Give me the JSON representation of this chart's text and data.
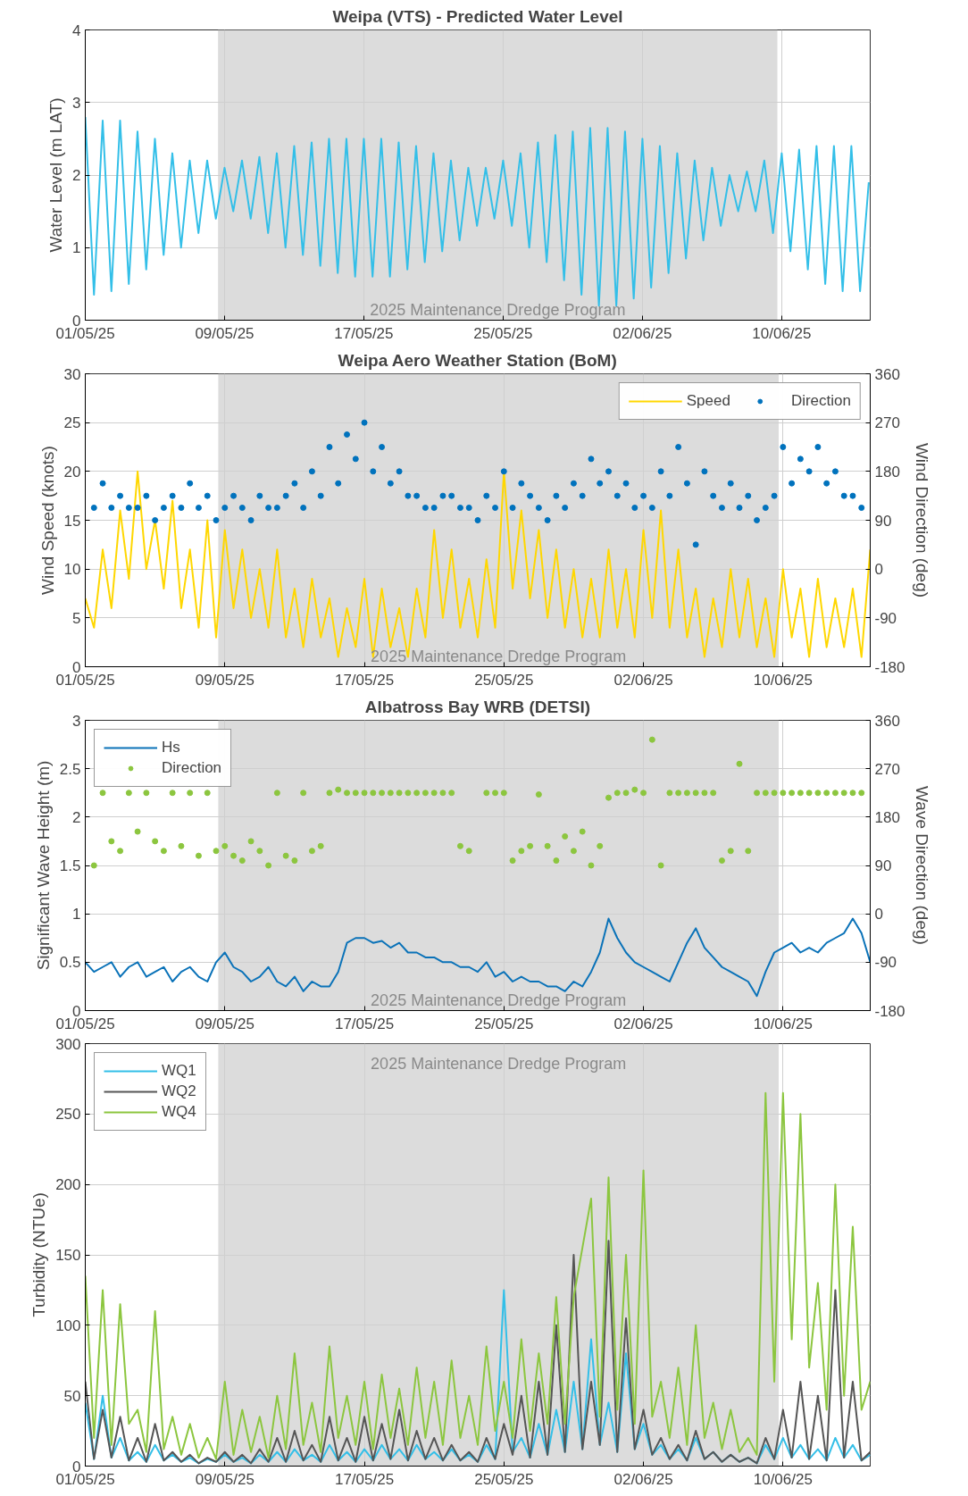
{
  "chart_data": [
    {
      "type": "line",
      "title": "Weipa (VTS) - Predicted Water Level",
      "ylabel": "Water Level (m LAT)",
      "grid": true,
      "xlim": [
        "2025-05-01T00:00",
        "2025-06-15T02:00"
      ],
      "ylim": [
        0,
        4
      ],
      "yticks": [
        0,
        1,
        2,
        3,
        4
      ],
      "xticks": [
        {
          "value": "2025-05-01",
          "label": "01/05/25"
        },
        {
          "value": "2025-05-09",
          "label": "09/05/25"
        },
        {
          "value": "2025-05-17",
          "label": "17/05/25"
        },
        {
          "value": "2025-05-25",
          "label": "25/05/25"
        },
        {
          "value": "2025-06-02",
          "label": "02/06/25"
        },
        {
          "value": "2025-06-10",
          "label": "10/06/25"
        }
      ],
      "bands": [
        {
          "axis": "x",
          "from": "2025-05-08T15:00",
          "to": "2025-06-09T18:00",
          "label": "2025 Maintenance Dredge Program",
          "color": "#dcdcdc"
        }
      ],
      "x": [
        "2025-05-01T00:00",
        "2025-05-01T12:00",
        "2025-05-02T00:00",
        "2025-05-02T12:00",
        "2025-05-03T00:00",
        "2025-05-03T12:00",
        "2025-05-04T00:00",
        "2025-05-04T12:00",
        "2025-05-05T00:00",
        "2025-05-05T12:00",
        "2025-05-06T00:00",
        "2025-05-06T12:00",
        "2025-05-07T00:00",
        "2025-05-07T12:00",
        "2025-05-08T00:00",
        "2025-05-08T12:00",
        "2025-05-09T00:00",
        "2025-05-09T12:00",
        "2025-05-10T00:00",
        "2025-05-10T12:00",
        "2025-05-11T00:00",
        "2025-05-11T12:00",
        "2025-05-12T00:00",
        "2025-05-12T12:00",
        "2025-05-13T00:00",
        "2025-05-13T12:00",
        "2025-05-14T00:00",
        "2025-05-14T12:00",
        "2025-05-15T00:00",
        "2025-05-15T12:00",
        "2025-05-16T00:00",
        "2025-05-16T12:00",
        "2025-05-17T00:00",
        "2025-05-17T12:00",
        "2025-05-18T00:00",
        "2025-05-18T12:00",
        "2025-05-19T00:00",
        "2025-05-19T12:00",
        "2025-05-20T00:00",
        "2025-05-20T12:00",
        "2025-05-21T00:00",
        "2025-05-21T12:00",
        "2025-05-22T00:00",
        "2025-05-22T12:00",
        "2025-05-23T00:00",
        "2025-05-23T12:00",
        "2025-05-24T00:00",
        "2025-05-24T12:00",
        "2025-05-25T00:00",
        "2025-05-25T12:00",
        "2025-05-26T00:00",
        "2025-05-26T12:00",
        "2025-05-27T00:00",
        "2025-05-27T12:00",
        "2025-05-28T00:00",
        "2025-05-28T12:00",
        "2025-05-29T00:00",
        "2025-05-29T12:00",
        "2025-05-30T00:00",
        "2025-05-30T12:00",
        "2025-05-31T00:00",
        "2025-05-31T12:00",
        "2025-06-01T00:00",
        "2025-06-01T12:00",
        "2025-06-02T00:00",
        "2025-06-02T12:00",
        "2025-06-03T00:00",
        "2025-06-03T12:00",
        "2025-06-04T00:00",
        "2025-06-04T12:00",
        "2025-06-05T00:00",
        "2025-06-05T12:00",
        "2025-06-06T00:00",
        "2025-06-06T12:00",
        "2025-06-07T00:00",
        "2025-06-07T12:00",
        "2025-06-08T00:00",
        "2025-06-08T12:00",
        "2025-06-09T00:00",
        "2025-06-09T12:00",
        "2025-06-10T00:00",
        "2025-06-10T12:00",
        "2025-06-11T00:00",
        "2025-06-11T12:00",
        "2025-06-12T00:00",
        "2025-06-12T12:00",
        "2025-06-13T00:00",
        "2025-06-13T12:00",
        "2025-06-14T00:00",
        "2025-06-14T12:00",
        "2025-06-15T00:00"
      ],
      "series": [
        {
          "color": "#33bfe8",
          "values": [
            2.8,
            0.35,
            2.75,
            0.4,
            2.75,
            0.5,
            2.6,
            0.7,
            2.5,
            0.9,
            2.3,
            1.0,
            2.2,
            1.2,
            2.2,
            1.4,
            2.1,
            1.5,
            2.2,
            1.4,
            2.25,
            1.2,
            2.3,
            1.0,
            2.4,
            0.9,
            2.45,
            0.75,
            2.5,
            0.65,
            2.5,
            0.6,
            2.5,
            0.6,
            2.5,
            0.6,
            2.45,
            0.7,
            2.4,
            0.8,
            2.3,
            0.95,
            2.2,
            1.1,
            2.1,
            1.3,
            2.1,
            1.4,
            2.2,
            1.3,
            2.3,
            1.0,
            2.45,
            0.8,
            2.55,
            0.55,
            2.6,
            0.35,
            2.65,
            0.2,
            2.65,
            0.2,
            2.6,
            0.3,
            2.5,
            0.45,
            2.4,
            0.65,
            2.3,
            0.85,
            2.2,
            1.1,
            2.1,
            1.3,
            2.0,
            1.5,
            2.05,
            1.5,
            2.2,
            1.2,
            2.3,
            0.95,
            2.35,
            0.7,
            2.4,
            0.5,
            2.4,
            0.4,
            2.4,
            0.4,
            1.9
          ]
        }
      ]
    },
    {
      "type": "line",
      "title": "Weipa Aero Weather Station (BoM)",
      "ylabel": "Wind Speed (knots)",
      "y2label": "Wind Direction (deg)",
      "grid": true,
      "legend": "top right",
      "xlim": [
        "2025-05-01T00:00",
        "2025-06-15T00:00"
      ],
      "ylim": [
        0,
        30
      ],
      "yticks": [
        0,
        5,
        10,
        15,
        20,
        25,
        30
      ],
      "y2lim": [
        -180,
        360
      ],
      "y2ticks": [
        -180,
        -90,
        0,
        90,
        180,
        270,
        360
      ],
      "xticks": [
        {
          "value": "2025-05-01",
          "label": "01/05/25"
        },
        {
          "value": "2025-05-09",
          "label": "09/05/25"
        },
        {
          "value": "2025-05-17",
          "label": "17/05/25"
        },
        {
          "value": "2025-05-25",
          "label": "25/05/25"
        },
        {
          "value": "2025-06-02",
          "label": "02/06/25"
        },
        {
          "value": "2025-06-10",
          "label": "10/06/25"
        }
      ],
      "bands": [
        {
          "axis": "x",
          "from": "2025-05-08T15:00",
          "to": "2025-06-09T18:00",
          "label": "2025 Maintenance Dredge Program",
          "color": "#dcdcdc"
        }
      ],
      "x": [
        "2025-05-01T00:00",
        "2025-05-01T12:00",
        "2025-05-02T00:00",
        "2025-05-02T12:00",
        "2025-05-03T00:00",
        "2025-05-03T12:00",
        "2025-05-04T00:00",
        "2025-05-04T12:00",
        "2025-05-05T00:00",
        "2025-05-05T12:00",
        "2025-05-06T00:00",
        "2025-05-06T12:00",
        "2025-05-07T00:00",
        "2025-05-07T12:00",
        "2025-05-08T00:00",
        "2025-05-08T12:00",
        "2025-05-09T00:00",
        "2025-05-09T12:00",
        "2025-05-10T00:00",
        "2025-05-10T12:00",
        "2025-05-11T00:00",
        "2025-05-11T12:00",
        "2025-05-12T00:00",
        "2025-05-12T12:00",
        "2025-05-13T00:00",
        "2025-05-13T12:00",
        "2025-05-14T00:00",
        "2025-05-14T12:00",
        "2025-05-15T00:00",
        "2025-05-15T12:00",
        "2025-05-16T00:00",
        "2025-05-16T12:00",
        "2025-05-17T00:00",
        "2025-05-17T12:00",
        "2025-05-18T00:00",
        "2025-05-18T12:00",
        "2025-05-19T00:00",
        "2025-05-19T12:00",
        "2025-05-20T00:00",
        "2025-05-20T12:00",
        "2025-05-21T00:00",
        "2025-05-21T12:00",
        "2025-05-22T00:00",
        "2025-05-22T12:00",
        "2025-05-23T00:00",
        "2025-05-23T12:00",
        "2025-05-24T00:00",
        "2025-05-24T12:00",
        "2025-05-25T00:00",
        "2025-05-25T12:00",
        "2025-05-26T00:00",
        "2025-05-26T12:00",
        "2025-05-27T00:00",
        "2025-05-27T12:00",
        "2025-05-28T00:00",
        "2025-05-28T12:00",
        "2025-05-29T00:00",
        "2025-05-29T12:00",
        "2025-05-30T00:00",
        "2025-05-30T12:00",
        "2025-05-31T00:00",
        "2025-05-31T12:00",
        "2025-06-01T00:00",
        "2025-06-01T12:00",
        "2025-06-02T00:00",
        "2025-06-02T12:00",
        "2025-06-03T00:00",
        "2025-06-03T12:00",
        "2025-06-04T00:00",
        "2025-06-04T12:00",
        "2025-06-05T00:00",
        "2025-06-05T12:00",
        "2025-06-06T00:00",
        "2025-06-06T12:00",
        "2025-06-07T00:00",
        "2025-06-07T12:00",
        "2025-06-08T00:00",
        "2025-06-08T12:00",
        "2025-06-09T00:00",
        "2025-06-09T12:00",
        "2025-06-10T00:00",
        "2025-06-10T12:00",
        "2025-06-11T00:00",
        "2025-06-11T12:00",
        "2025-06-12T00:00",
        "2025-06-12T12:00",
        "2025-06-13T00:00",
        "2025-06-13T12:00",
        "2025-06-14T00:00",
        "2025-06-14T12:00",
        "2025-06-15T00:00"
      ],
      "series": [
        {
          "name": "Speed",
          "color": "#ffd700",
          "values": [
            7,
            4,
            12,
            6,
            16,
            9,
            20,
            10,
            15,
            8,
            17,
            6,
            12,
            4,
            15,
            3,
            14,
            6,
            12,
            5,
            10,
            4,
            12,
            3,
            8,
            2,
            9,
            3,
            7,
            1,
            6,
            2,
            9,
            1,
            8,
            2,
            6,
            1,
            8,
            3,
            14,
            5,
            12,
            4,
            9,
            3,
            11,
            4,
            20,
            8,
            16,
            7,
            14,
            5,
            12,
            4,
            10,
            3,
            9,
            3,
            12,
            4,
            10,
            3,
            14,
            5,
            16,
            4,
            12,
            3,
            8,
            1,
            7,
            2,
            10,
            3,
            9,
            2,
            7,
            1,
            10,
            3,
            8,
            1,
            9,
            2,
            7,
            2,
            8,
            1,
            12
          ]
        },
        {
          "name": "Direction",
          "type": "scatter",
          "marker": "circle",
          "axis": "y2",
          "color": "#0072bd",
          "values": [
            null,
            113,
            158,
            113,
            135,
            113,
            113,
            135,
            90,
            113,
            135,
            113,
            158,
            113,
            135,
            90,
            113,
            135,
            113,
            90,
            135,
            113,
            113,
            135,
            158,
            113,
            180,
            135,
            225,
            158,
            248,
            203,
            270,
            180,
            225,
            158,
            180,
            135,
            135,
            113,
            113,
            135,
            135,
            113,
            113,
            90,
            135,
            113,
            180,
            113,
            158,
            135,
            113,
            90,
            135,
            113,
            158,
            135,
            203,
            158,
            180,
            135,
            158,
            113,
            135,
            113,
            180,
            135,
            225,
            158,
            45,
            180,
            135,
            113,
            158,
            113,
            135,
            90,
            113,
            135,
            225,
            158,
            203,
            180,
            225,
            158,
            180,
            135,
            135,
            113,
            null
          ]
        }
      ]
    },
    {
      "type": "line",
      "title": "Albatross Bay WRB (DETSI)",
      "ylabel": "Significant Wave Height (m)",
      "y2label": "Wave Direction (deg)",
      "grid": true,
      "legend": "top left",
      "xlim": [
        "2025-05-01T00:00",
        "2025-06-15T00:00"
      ],
      "ylim": [
        0,
        3
      ],
      "yticks": [
        0,
        0.5,
        1,
        1.5,
        2,
        2.5,
        3
      ],
      "y2lim": [
        -180,
        360
      ],
      "y2ticks": [
        -180,
        -90,
        0,
        90,
        180,
        270,
        360
      ],
      "xticks": [
        {
          "value": "2025-05-01",
          "label": "01/05/25"
        },
        {
          "value": "2025-05-09",
          "label": "09/05/25"
        },
        {
          "value": "2025-05-17",
          "label": "17/05/25"
        },
        {
          "value": "2025-05-25",
          "label": "25/05/25"
        },
        {
          "value": "2025-06-02",
          "label": "02/06/25"
        },
        {
          "value": "2025-06-10",
          "label": "10/06/25"
        }
      ],
      "bands": [
        {
          "axis": "x",
          "from": "2025-05-08T15:00",
          "to": "2025-06-09T18:00",
          "label": "2025 Maintenance Dredge Program",
          "color": "#dcdcdc"
        }
      ],
      "x": [
        "2025-05-01T00:00",
        "2025-05-01T12:00",
        "2025-05-02T00:00",
        "2025-05-02T12:00",
        "2025-05-03T00:00",
        "2025-05-03T12:00",
        "2025-05-04T00:00",
        "2025-05-04T12:00",
        "2025-05-05T00:00",
        "2025-05-05T12:00",
        "2025-05-06T00:00",
        "2025-05-06T12:00",
        "2025-05-07T00:00",
        "2025-05-07T12:00",
        "2025-05-08T00:00",
        "2025-05-08T12:00",
        "2025-05-09T00:00",
        "2025-05-09T12:00",
        "2025-05-10T00:00",
        "2025-05-10T12:00",
        "2025-05-11T00:00",
        "2025-05-11T12:00",
        "2025-05-12T00:00",
        "2025-05-12T12:00",
        "2025-05-13T00:00",
        "2025-05-13T12:00",
        "2025-05-14T00:00",
        "2025-05-14T12:00",
        "2025-05-15T00:00",
        "2025-05-15T12:00",
        "2025-05-16T00:00",
        "2025-05-16T12:00",
        "2025-05-17T00:00",
        "2025-05-17T12:00",
        "2025-05-18T00:00",
        "2025-05-18T12:00",
        "2025-05-19T00:00",
        "2025-05-19T12:00",
        "2025-05-20T00:00",
        "2025-05-20T12:00",
        "2025-05-21T00:00",
        "2025-05-21T12:00",
        "2025-05-22T00:00",
        "2025-05-22T12:00",
        "2025-05-23T00:00",
        "2025-05-23T12:00",
        "2025-05-24T00:00",
        "2025-05-24T12:00",
        "2025-05-25T00:00",
        "2025-05-25T12:00",
        "2025-05-26T00:00",
        "2025-05-26T12:00",
        "2025-05-27T00:00",
        "2025-05-27T12:00",
        "2025-05-28T00:00",
        "2025-05-28T12:00",
        "2025-05-29T00:00",
        "2025-05-29T12:00",
        "2025-05-30T00:00",
        "2025-05-30T12:00",
        "2025-05-31T00:00",
        "2025-05-31T12:00",
        "2025-06-01T00:00",
        "2025-06-01T12:00",
        "2025-06-02T00:00",
        "2025-06-02T12:00",
        "2025-06-03T00:00",
        "2025-06-03T12:00",
        "2025-06-04T00:00",
        "2025-06-04T12:00",
        "2025-06-05T00:00",
        "2025-06-05T12:00",
        "2025-06-06T00:00",
        "2025-06-06T12:00",
        "2025-06-07T00:00",
        "2025-06-07T12:00",
        "2025-06-08T00:00",
        "2025-06-08T12:00",
        "2025-06-09T00:00",
        "2025-06-09T12:00",
        "2025-06-10T00:00",
        "2025-06-10T12:00",
        "2025-06-11T00:00",
        "2025-06-11T12:00",
        "2025-06-12T00:00",
        "2025-06-12T12:00",
        "2025-06-13T00:00",
        "2025-06-13T12:00",
        "2025-06-14T00:00",
        "2025-06-14T12:00",
        "2025-06-15T00:00"
      ],
      "series": [
        {
          "name": "Hs",
          "color": "#0a72b8",
          "values": [
            0.5,
            0.4,
            0.45,
            0.5,
            0.35,
            0.45,
            0.5,
            0.35,
            0.4,
            0.45,
            0.3,
            0.4,
            0.45,
            0.35,
            0.3,
            0.5,
            0.6,
            0.45,
            0.4,
            0.3,
            0.35,
            0.45,
            0.3,
            0.25,
            0.35,
            0.2,
            0.3,
            0.25,
            0.25,
            0.4,
            0.7,
            0.75,
            0.75,
            0.7,
            0.72,
            0.65,
            0.7,
            0.6,
            0.6,
            0.55,
            0.55,
            0.5,
            0.5,
            0.45,
            0.45,
            0.4,
            0.5,
            0.35,
            0.4,
            0.3,
            0.35,
            0.3,
            0.3,
            0.25,
            0.25,
            0.2,
            0.3,
            0.25,
            0.4,
            0.6,
            0.95,
            0.75,
            0.6,
            0.5,
            0.45,
            0.4,
            0.35,
            0.3,
            0.5,
            0.7,
            0.85,
            0.65,
            0.55,
            0.45,
            0.4,
            0.35,
            0.3,
            0.15,
            0.4,
            0.6,
            0.65,
            0.7,
            0.6,
            0.65,
            0.6,
            0.7,
            0.75,
            0.8,
            0.95,
            0.8,
            0.5
          ]
        },
        {
          "name": "Direction",
          "type": "scatter",
          "marker": "circle",
          "axis": "y2",
          "color": "#8cc63f",
          "values": [
            null,
            90,
            225,
            135,
            117,
            225,
            153,
            225,
            135,
            117,
            225,
            126,
            225,
            108,
            225,
            117,
            126,
            108,
            99,
            135,
            117,
            90,
            225,
            108,
            99,
            225,
            117,
            126,
            225,
            231,
            225,
            225,
            225,
            225,
            225,
            225,
            225,
            225,
            225,
            225,
            225,
            225,
            225,
            126,
            117,
            null,
            225,
            225,
            225,
            99,
            117,
            126,
            222,
            126,
            99,
            144,
            117,
            153,
            90,
            126,
            216,
            225,
            225,
            231,
            225,
            324,
            90,
            225,
            225,
            225,
            225,
            225,
            225,
            99,
            117,
            279,
            117,
            225,
            225,
            225,
            225,
            225,
            225,
            225,
            225,
            225,
            225,
            225,
            225,
            225,
            null
          ]
        }
      ]
    },
    {
      "type": "line",
      "ylabel": "Turbidity (NTUe)",
      "grid": true,
      "legend": "top left",
      "xlim": [
        "2025-05-01T00:00",
        "2025-06-15T00:00"
      ],
      "ylim": [
        0,
        300
      ],
      "yticks": [
        0,
        50,
        100,
        150,
        200,
        250,
        300
      ],
      "xticks": [
        {
          "value": "2025-05-01",
          "label": "01/05/25"
        },
        {
          "value": "2025-05-09",
          "label": "09/05/25"
        },
        {
          "value": "2025-05-17",
          "label": "17/05/25"
        },
        {
          "value": "2025-05-25",
          "label": "25/05/25"
        },
        {
          "value": "2025-06-02",
          "label": "02/06/25"
        },
        {
          "value": "2025-06-10",
          "label": "10/06/25"
        }
      ],
      "bands": [
        {
          "axis": "x",
          "from": "2025-05-08T15:00",
          "to": "2025-06-09T18:00",
          "label": "2025 Maintenance Dredge Program",
          "color": "#dcdcdc"
        }
      ],
      "x": [
        "2025-05-01T00:00",
        "2025-05-01T12:00",
        "2025-05-02T00:00",
        "2025-05-02T12:00",
        "2025-05-03T00:00",
        "2025-05-03T12:00",
        "2025-05-04T00:00",
        "2025-05-04T12:00",
        "2025-05-05T00:00",
        "2025-05-05T12:00",
        "2025-05-06T00:00",
        "2025-05-06T12:00",
        "2025-05-07T00:00",
        "2025-05-07T12:00",
        "2025-05-08T00:00",
        "2025-05-08T12:00",
        "2025-05-09T00:00",
        "2025-05-09T12:00",
        "2025-05-10T00:00",
        "2025-05-10T12:00",
        "2025-05-11T00:00",
        "2025-05-11T12:00",
        "2025-05-12T00:00",
        "2025-05-12T12:00",
        "2025-05-13T00:00",
        "2025-05-13T12:00",
        "2025-05-14T00:00",
        "2025-05-14T12:00",
        "2025-05-15T00:00",
        "2025-05-15T12:00",
        "2025-05-16T00:00",
        "2025-05-16T12:00",
        "2025-05-17T00:00",
        "2025-05-17T12:00",
        "2025-05-18T00:00",
        "2025-05-18T12:00",
        "2025-05-19T00:00",
        "2025-05-19T12:00",
        "2025-05-20T00:00",
        "2025-05-20T12:00",
        "2025-05-21T00:00",
        "2025-05-21T12:00",
        "2025-05-22T00:00",
        "2025-05-22T12:00",
        "2025-05-23T00:00",
        "2025-05-23T12:00",
        "2025-05-24T00:00",
        "2025-05-24T12:00",
        "2025-05-25T00:00",
        "2025-05-25T12:00",
        "2025-05-26T00:00",
        "2025-05-26T12:00",
        "2025-05-27T00:00",
        "2025-05-27T12:00",
        "2025-05-28T00:00",
        "2025-05-28T12:00",
        "2025-05-29T00:00",
        "2025-05-29T12:00",
        "2025-05-30T00:00",
        "2025-05-30T12:00",
        "2025-05-31T00:00",
        "2025-05-31T12:00",
        "2025-06-01T00:00",
        "2025-06-01T12:00",
        "2025-06-02T00:00",
        "2025-06-02T12:00",
        "2025-06-03T00:00",
        "2025-06-03T12:00",
        "2025-06-04T00:00",
        "2025-06-04T12:00",
        "2025-06-05T00:00",
        "2025-06-05T12:00",
        "2025-06-06T00:00",
        "2025-06-06T12:00",
        "2025-06-07T00:00",
        "2025-06-07T12:00",
        "2025-06-08T00:00",
        "2025-06-08T12:00",
        "2025-06-09T00:00",
        "2025-06-09T12:00",
        "2025-06-10T00:00",
        "2025-06-10T12:00",
        "2025-06-11T00:00",
        "2025-06-11T12:00",
        "2025-06-12T00:00",
        "2025-06-12T12:00",
        "2025-06-13T00:00",
        "2025-06-13T12:00",
        "2025-06-14T00:00",
        "2025-06-14T12:00",
        "2025-06-15T00:00"
      ],
      "series": [
        {
          "name": "WQ1",
          "color": "#33bfe8",
          "values": [
            45,
            5,
            50,
            6,
            20,
            4,
            10,
            3,
            15,
            4,
            8,
            3,
            6,
            2,
            5,
            3,
            8,
            3,
            6,
            2,
            8,
            3,
            10,
            3,
            12,
            4,
            8,
            3,
            15,
            4,
            10,
            3,
            12,
            4,
            15,
            5,
            12,
            4,
            15,
            5,
            10,
            4,
            12,
            4,
            8,
            3,
            15,
            5,
            125,
            10,
            20,
            6,
            30,
            8,
            40,
            10,
            60,
            12,
            90,
            15,
            45,
            10,
            80,
            12,
            30,
            8,
            15,
            5,
            12,
            4,
            20,
            5,
            10,
            3,
            8,
            3,
            6,
            2,
            15,
            5,
            20,
            6,
            15,
            5,
            12,
            4,
            20,
            6,
            15,
            4,
            8
          ]
        },
        {
          "name": "WQ2",
          "color": "#555555",
          "values": [
            60,
            5,
            40,
            6,
            35,
            4,
            20,
            3,
            30,
            4,
            10,
            3,
            8,
            2,
            6,
            3,
            10,
            3,
            8,
            2,
            12,
            3,
            20,
            3,
            25,
            4,
            15,
            3,
            35,
            4,
            20,
            3,
            35,
            4,
            30,
            5,
            40,
            4,
            25,
            5,
            20,
            4,
            15,
            4,
            10,
            3,
            20,
            5,
            30,
            8,
            50,
            6,
            60,
            8,
            100,
            10,
            150,
            12,
            60,
            15,
            160,
            10,
            105,
            12,
            40,
            8,
            20,
            5,
            15,
            4,
            25,
            5,
            10,
            3,
            8,
            3,
            6,
            2,
            20,
            5,
            40,
            6,
            60,
            5,
            50,
            4,
            125,
            6,
            60,
            4,
            10
          ]
        },
        {
          "name": "WQ4",
          "color": "#8cc63f",
          "values": [
            135,
            20,
            125,
            15,
            115,
            30,
            40,
            10,
            110,
            12,
            35,
            8,
            30,
            6,
            20,
            5,
            60,
            8,
            40,
            10,
            35,
            6,
            50,
            12,
            80,
            15,
            45,
            10,
            85,
            20,
            50,
            15,
            60,
            12,
            65,
            20,
            55,
            15,
            70,
            20,
            60,
            15,
            75,
            20,
            50,
            15,
            85,
            25,
            60,
            20,
            90,
            25,
            80,
            30,
            120,
            30,
            120,
            155,
            190,
            35,
            205,
            40,
            150,
            30,
            210,
            35,
            60,
            20,
            70,
            15,
            100,
            20,
            45,
            12,
            40,
            10,
            20,
            8,
            265,
            60,
            265,
            90,
            250,
            70,
            130,
            40,
            200,
            50,
            170,
            40,
            60
          ]
        }
      ]
    }
  ]
}
